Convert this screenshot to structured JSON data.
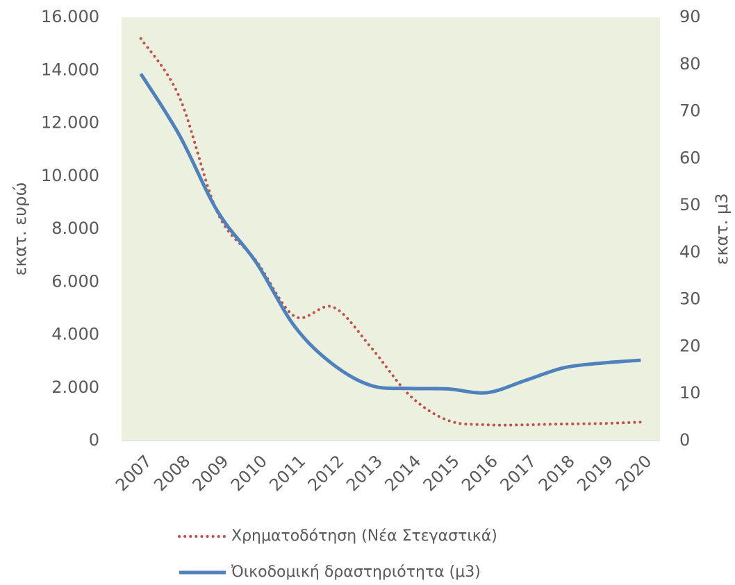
{
  "chart_data": {
    "type": "line",
    "categories": [
      "2007",
      "2008",
      "2009",
      "2010",
      "2011",
      "2012",
      "2013",
      "2014",
      "2015",
      "2016",
      "2017",
      "2018",
      "2019",
      "2020"
    ],
    "ylabel": "εκατ. ευρώ",
    "y2label": "εκατ. μ3",
    "ylim": [
      0,
      16000
    ],
    "yticks": [
      0,
      {
        "value": 2000,
        "label": "2.000"
      },
      {
        "value": 4000,
        "label": "4.000"
      },
      {
        "value": 6000,
        "label": "6.000"
      },
      {
        "value": 8000,
        "label": "8.000"
      },
      {
        "value": 10000,
        "label": "10.000"
      },
      {
        "value": 12000,
        "label": "12.000"
      },
      {
        "value": 14000,
        "label": "14.000"
      },
      {
        "value": 16000,
        "label": "16.000"
      }
    ],
    "y2lim": [
      0,
      90
    ],
    "y2ticks": [
      0,
      10,
      20,
      30,
      40,
      50,
      60,
      70,
      80,
      90
    ],
    "plot_background": "#ebf1de",
    "legend": "bottom",
    "series": [
      {
        "name": "Χρηματοδότηση (Νέα Στεγαστικά)",
        "color": "#c0504d",
        "style": "dotted",
        "values": [
          15200,
          13000,
          8600,
          6800,
          4700,
          5050,
          3500,
          1700,
          760,
          600,
          600,
          630,
          650,
          700
        ]
      },
      {
        "name": "Ὀικοδομική δραστηριότητα  (μ3)",
        "color": "#4f81bd",
        "style": "solid",
        "axis": "y2",
        "values": [
          78,
          65,
          48.7,
          37.9,
          24.3,
          16.2,
          11.7,
          11.1,
          11,
          10.2,
          12.8,
          15.5,
          16.5,
          17.1
        ]
      }
    ]
  }
}
